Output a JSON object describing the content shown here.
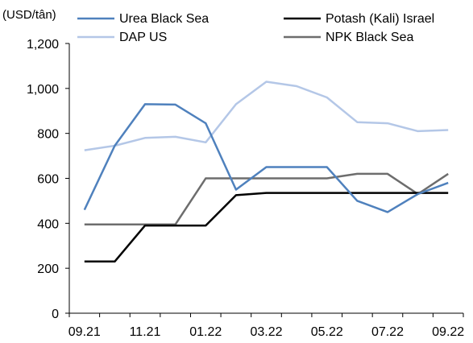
{
  "chart_data": {
    "type": "line",
    "ylabel": "(USD/tân)",
    "ylim": [
      0,
      1200
    ],
    "yticks": [
      0,
      200,
      400,
      600,
      800,
      1000,
      1200
    ],
    "ytick_labels": [
      "0",
      "200",
      "400",
      "600",
      "800",
      "1,000",
      "1,200"
    ],
    "x": [
      "09.21",
      "10.21",
      "11.21",
      "12.21",
      "01.22",
      "02.22",
      "03.22",
      "04.22",
      "05.22",
      "06.22",
      "07.22",
      "08.22",
      "09.22"
    ],
    "xtick_labels": [
      "09.21",
      "11.21",
      "01.22",
      "03.22",
      "05.22",
      "07.22",
      "09.22"
    ],
    "grid": false,
    "legend_position": "top",
    "series": [
      {
        "name": "Urea Black Sea",
        "color": "#4F81BD",
        "values": [
          460,
          745,
          930,
          928,
          845,
          550,
          650,
          650,
          650,
          500,
          450,
          530,
          580
        ]
      },
      {
        "name": "Potash (Kali) Israel",
        "color": "#000000",
        "values": [
          230,
          230,
          390,
          390,
          390,
          525,
          535,
          535,
          535,
          535,
          535,
          535,
          535
        ]
      },
      {
        "name": "DAP US",
        "color": "#B4C7E7",
        "values": [
          725,
          745,
          780,
          785,
          760,
          930,
          1030,
          1010,
          960,
          850,
          845,
          810,
          815
        ]
      },
      {
        "name": "NPK Black Sea",
        "color": "#6D6D6D",
        "values": [
          395,
          395,
          395,
          395,
          600,
          600,
          600,
          600,
          600,
          620,
          620,
          530,
          620
        ]
      }
    ]
  }
}
